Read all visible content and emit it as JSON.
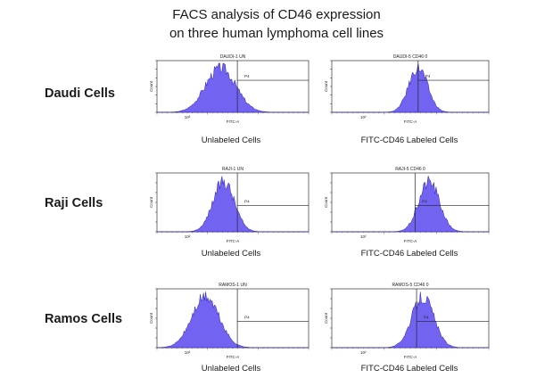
{
  "title_line1": "FACS analysis of CD46 expression",
  "title_line2": "on three human lymphoma cell lines",
  "colors": {
    "histogram_fill": "#6a5cf0",
    "histogram_edge": "#2a1fb0",
    "frame": "#333333"
  },
  "chart_data": [
    {
      "type": "area",
      "row": "Daudi Cells",
      "panel_title": "DAUDI-1 UN",
      "caption": "Unlabeled Cells",
      "xlabel": "FITC-A",
      "ylabel": "Count",
      "gate_label": "P4",
      "tick_label": "10²",
      "x_scale": "log",
      "xlim": [
        0,
        1
      ],
      "peak_position": 0.42,
      "peak_width": 0.1,
      "gate_x": 0.53,
      "gate_y": 0.38
    },
    {
      "type": "area",
      "row": "Daudi Cells",
      "panel_title": "DAUDI-5 CD46 0",
      "caption": "FITC-CD46 Labeled Cells",
      "xlabel": "FITC-A",
      "ylabel": "Count",
      "gate_label": "P4",
      "tick_label": "10²",
      "x_scale": "log",
      "xlim": [
        0,
        1
      ],
      "peak_position": 0.55,
      "peak_width": 0.06,
      "gate_x": 0.55,
      "gate_y": 0.38
    },
    {
      "type": "area",
      "row": "Raji Cells",
      "panel_title": "RAJI-1 UN",
      "caption": "Unlabeled Cells",
      "xlabel": "FITC-A",
      "ylabel": "Count",
      "gate_label": "P4",
      "tick_label": "10²",
      "x_scale": "log",
      "xlim": [
        0,
        1
      ],
      "peak_position": 0.44,
      "peak_width": 0.07,
      "gate_x": 0.53,
      "gate_y": 0.55
    },
    {
      "type": "area",
      "row": "Raji Cells",
      "panel_title": "RAJI-5 CD46 0",
      "caption": "FITC-CD46 Labeled Cells",
      "xlabel": "FITC-A",
      "ylabel": "Count",
      "gate_label": "P4",
      "tick_label": "10²",
      "x_scale": "log",
      "xlim": [
        0,
        1
      ],
      "peak_position": 0.62,
      "peak_width": 0.065,
      "gate_x": 0.53,
      "gate_y": 0.55
    },
    {
      "type": "area",
      "row": "Ramos Cells",
      "panel_title": "RAMOS-1 UN",
      "caption": "Unlabeled Cells",
      "xlabel": "FITC-A",
      "ylabel": "Count",
      "gate_label": "P4",
      "tick_label": "10²",
      "x_scale": "log",
      "xlim": [
        0,
        1
      ],
      "peak_position": 0.32,
      "peak_width": 0.09,
      "gate_x": 0.53,
      "gate_y": 0.55
    },
    {
      "type": "area",
      "row": "Ramos Cells",
      "panel_title": "RAMOS-5 CD46 0",
      "caption": "FITC-CD46 Labeled Cells",
      "xlabel": "FITC-A",
      "ylabel": "Count",
      "gate_label": "P4",
      "tick_label": "10²",
      "x_scale": "log",
      "xlim": [
        0,
        1
      ],
      "peak_position": 0.58,
      "peak_width": 0.07,
      "gate_x": 0.54,
      "gate_y": 0.55
    }
  ],
  "rows": [
    "Daudi Cells",
    "Raji Cells",
    "Ramos Cells"
  ]
}
